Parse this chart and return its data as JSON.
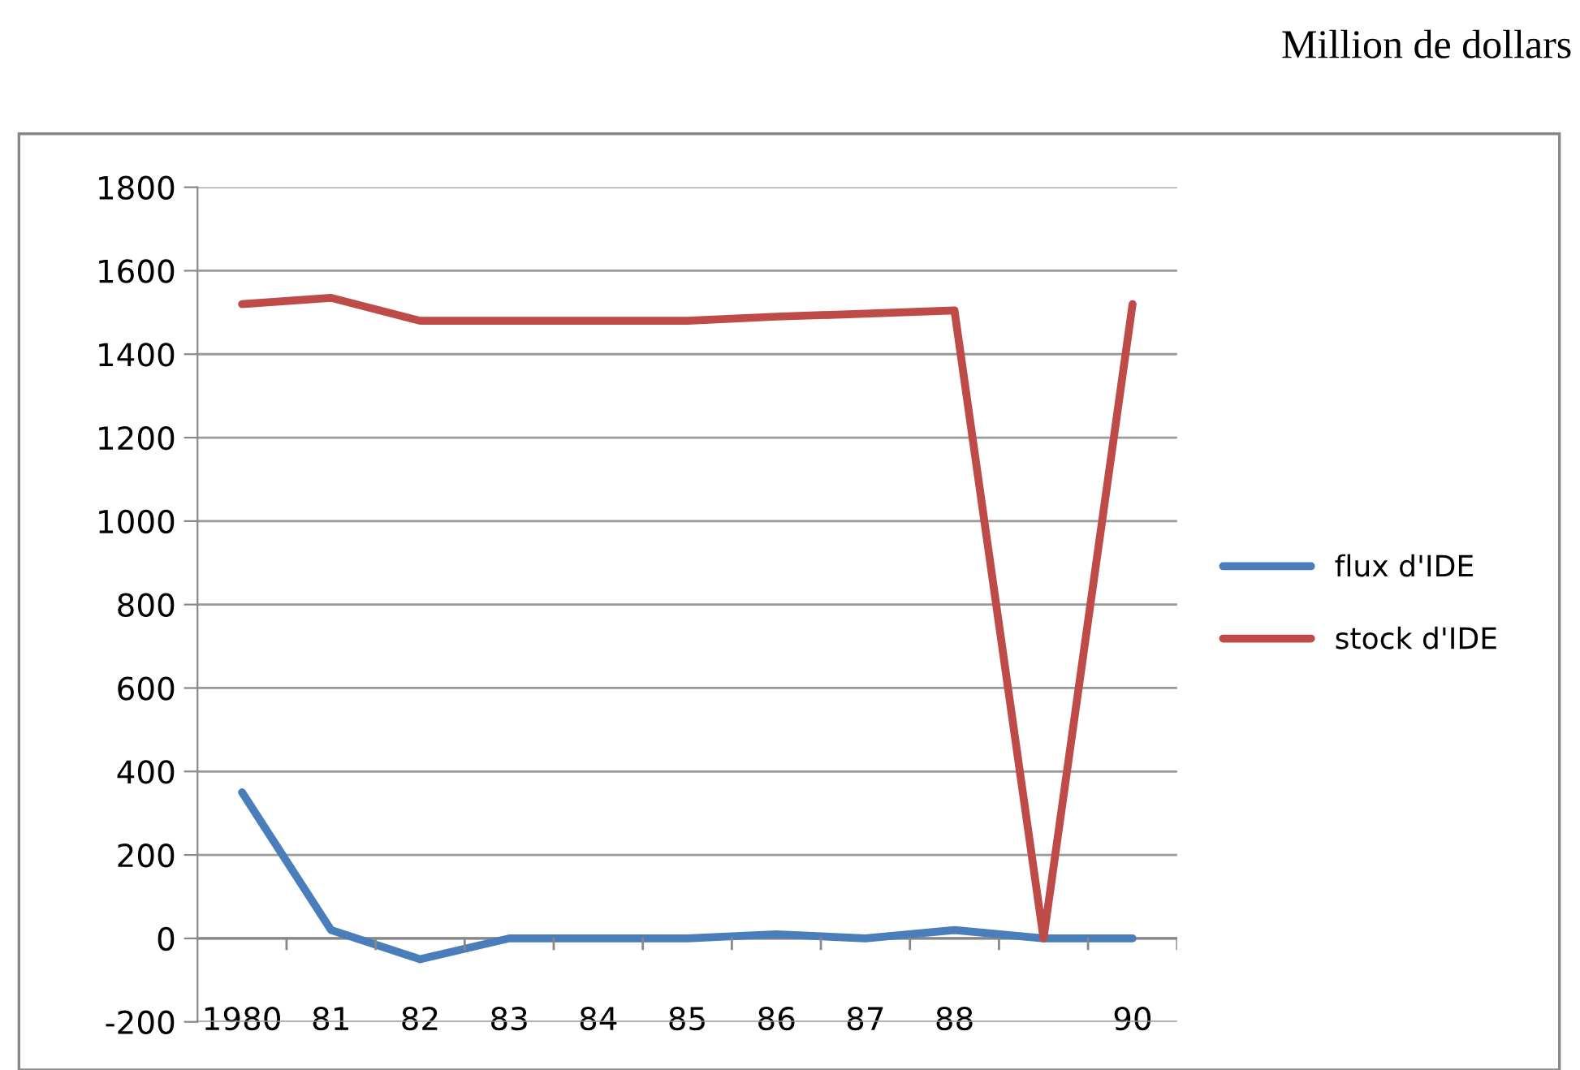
{
  "chart_data": {
    "type": "line",
    "annotations": [
      "Million de dollars"
    ],
    "categories": [
      "1980",
      "81",
      "82",
      "83",
      "84",
      "85",
      "86",
      "87",
      "88",
      null,
      "90"
    ],
    "series": [
      {
        "name": "flux d'IDE",
        "color": "#4a7ebb",
        "values": [
          350,
          20,
          -50,
          0,
          0,
          0,
          10,
          0,
          20,
          0,
          0
        ]
      },
      {
        "name": "stock d'IDE",
        "color": "#be4b48",
        "values": [
          1520,
          1535,
          1480,
          1480,
          1480,
          1480,
          1490,
          1497,
          1505,
          0,
          1520
        ]
      }
    ],
    "ylim": [
      -200,
      1800
    ],
    "yticks": [
      -200,
      0,
      200,
      400,
      600,
      800,
      1000,
      1200,
      1400,
      1600,
      1800
    ],
    "grid": "y",
    "legend": "right",
    "marker": "none",
    "line_style": "solid"
  }
}
